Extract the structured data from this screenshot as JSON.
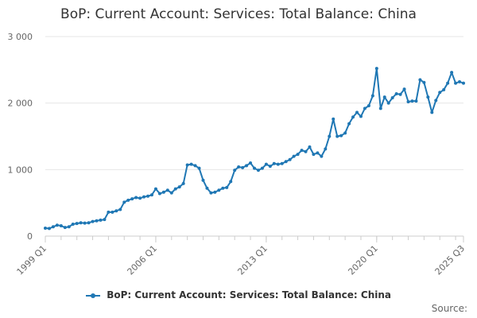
{
  "chart_data": {
    "type": "line",
    "title": "BoP: Current Account: Services: Total Balance: China",
    "xlabel": "",
    "ylabel": "",
    "ylim": [
      0,
      3000
    ],
    "yticks": [
      "0",
      "1 000",
      "2 000",
      "3 000"
    ],
    "xticks": [
      {
        "label": "1999 Q1",
        "index": 0
      },
      {
        "label": "2006 Q1",
        "index": 28
      },
      {
        "label": "2013 Q1",
        "index": 56
      },
      {
        "label": "2020 Q1",
        "index": 84
      },
      {
        "label": "2025 Q3",
        "index": 106
      }
    ],
    "grid": true,
    "legend_position": "bottom",
    "color": "#1f77b4",
    "series": [
      {
        "name": "BoP: Current Account: Services: Total Balance: China",
        "values": [
          120,
          115,
          140,
          165,
          155,
          130,
          140,
          180,
          190,
          200,
          195,
          200,
          220,
          230,
          240,
          250,
          360,
          360,
          380,
          400,
          510,
          540,
          560,
          580,
          570,
          590,
          600,
          620,
          710,
          640,
          660,
          690,
          650,
          710,
          740,
          790,
          1070,
          1080,
          1060,
          1020,
          840,
          720,
          650,
          660,
          690,
          720,
          730,
          820,
          990,
          1040,
          1030,
          1060,
          1100,
          1020,
          990,
          1020,
          1080,
          1050,
          1090,
          1080,
          1090,
          1120,
          1150,
          1200,
          1230,
          1290,
          1270,
          1340,
          1230,
          1250,
          1200,
          1310,
          1500,
          1760,
          1500,
          1510,
          1550,
          1690,
          1790,
          1860,
          1800,
          1920,
          1960,
          2110,
          2520,
          1920,
          2090,
          2000,
          2080,
          2140,
          2130,
          2210,
          2020,
          2030,
          2030,
          2350,
          2310,
          2090,
          1860,
          2040,
          2160,
          2200,
          2300,
          2460,
          2300,
          2320,
          2300
        ]
      }
    ]
  },
  "legend": {
    "label": "BoP: Current Account: Services: Total Balance: China"
  },
  "source": {
    "label": "Source:"
  }
}
